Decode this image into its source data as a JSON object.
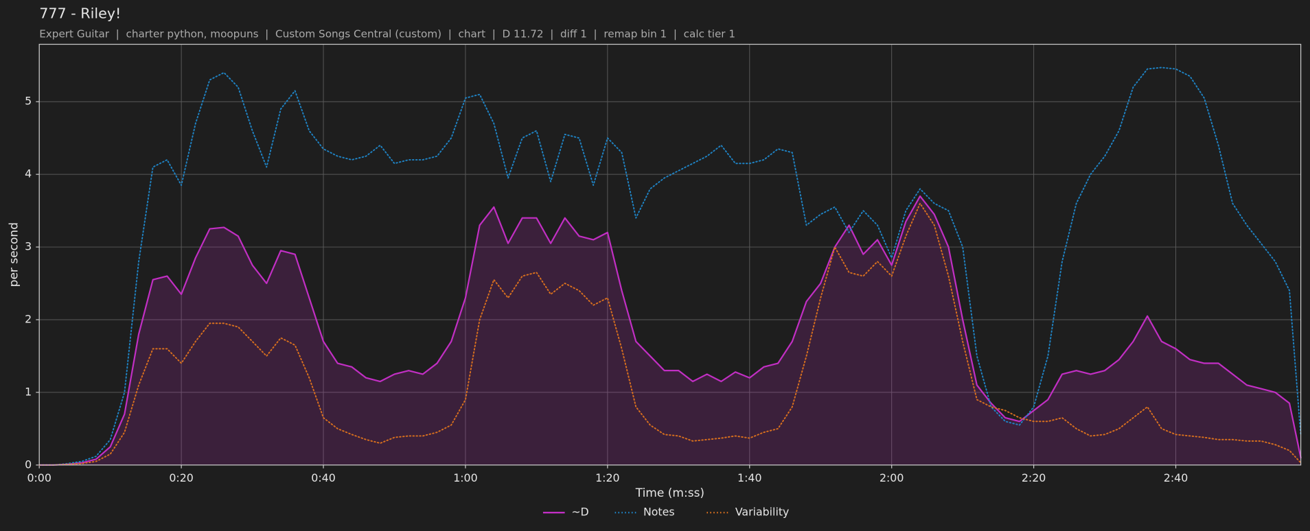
{
  "chart_data": {
    "type": "line",
    "title": "777 - Riley!",
    "subtitle": "Expert Guitar  |  charter python, moopuns  |  Custom Songs Central (custom)  |  chart  |  D 11.72  |  diff 1  |  remap bin 1  |  calc tier 1",
    "xlabel": "Time (m:ss)",
    "ylabel": "per second",
    "xlim": [
      0,
      177.6
    ],
    "ylim": [
      0,
      5.79
    ],
    "xticks": [
      {
        "value": 0,
        "label": "0:00"
      },
      {
        "value": 20,
        "label": "0:20"
      },
      {
        "value": 40,
        "label": "0:40"
      },
      {
        "value": 60,
        "label": "1:00"
      },
      {
        "value": 80,
        "label": "1:20"
      },
      {
        "value": 100,
        "label": "1:40"
      },
      {
        "value": 120,
        "label": "2:00"
      },
      {
        "value": 140,
        "label": "2:20"
      },
      {
        "value": 160,
        "label": "2:40"
      }
    ],
    "yticks": [
      0,
      1,
      2,
      3,
      4,
      5
    ],
    "grid": true,
    "legend": "bottom",
    "x": [
      0,
      2,
      4,
      6,
      8,
      10,
      12,
      14,
      16,
      18,
      20,
      22,
      24,
      26,
      28,
      30,
      32,
      34,
      36,
      38,
      40,
      42,
      44,
      46,
      48,
      50,
      52,
      54,
      56,
      58,
      60,
      62,
      64,
      66,
      68,
      70,
      72,
      74,
      76,
      78,
      80,
      82,
      84,
      86,
      88,
      90,
      92,
      94,
      96,
      98,
      100,
      102,
      104,
      106,
      108,
      110,
      112,
      114,
      116,
      118,
      120,
      122,
      124,
      126,
      128,
      130,
      132,
      134,
      136,
      138,
      140,
      142,
      144,
      146,
      148,
      150,
      152,
      154,
      156,
      158,
      160,
      162,
      164,
      166,
      168,
      170,
      172,
      174,
      176,
      177.6
    ],
    "series": [
      {
        "name": "~D",
        "color": "#c22fc4",
        "linestyle": "solid",
        "fill": true,
        "values": [
          0,
          0,
          0.01,
          0.03,
          0.08,
          0.25,
          0.7,
          1.8,
          2.55,
          2.6,
          2.35,
          2.85,
          3.25,
          3.27,
          3.15,
          2.75,
          2.5,
          2.95,
          2.9,
          2.3,
          1.7,
          1.4,
          1.35,
          1.2,
          1.15,
          1.25,
          1.3,
          1.25,
          1.4,
          1.7,
          2.3,
          3.3,
          3.55,
          3.05,
          3.4,
          3.4,
          3.05,
          3.4,
          3.15,
          3.1,
          3.2,
          2.4,
          1.7,
          1.5,
          1.3,
          1.3,
          1.15,
          1.25,
          1.15,
          1.28,
          1.2,
          1.35,
          1.4,
          1.7,
          2.25,
          2.5,
          3.0,
          3.3,
          2.9,
          3.1,
          2.75,
          3.35,
          3.7,
          3.45,
          3.0,
          2.0,
          1.1,
          0.85,
          0.65,
          0.6,
          0.75,
          0.9,
          1.25,
          1.3,
          1.25,
          1.3,
          1.45,
          1.7,
          2.05,
          1.7,
          1.6,
          1.45,
          1.4,
          1.4,
          1.25,
          1.1,
          1.05,
          1.0,
          0.85,
          0.1
        ]
      },
      {
        "name": "Notes",
        "color": "#1f83c4",
        "linestyle": "dotted",
        "fill": false,
        "values": [
          0,
          0,
          0.02,
          0.05,
          0.12,
          0.35,
          1.0,
          2.8,
          4.1,
          4.2,
          3.85,
          4.7,
          5.3,
          5.4,
          5.2,
          4.6,
          4.1,
          4.9,
          5.15,
          4.6,
          4.35,
          4.25,
          4.2,
          4.25,
          4.4,
          4.15,
          4.2,
          4.2,
          4.25,
          4.5,
          5.05,
          5.1,
          4.7,
          3.95,
          4.5,
          4.6,
          3.9,
          4.55,
          4.5,
          3.85,
          4.5,
          4.3,
          3.4,
          3.8,
          3.95,
          4.05,
          4.15,
          4.25,
          4.4,
          4.15,
          4.15,
          4.2,
          4.35,
          4.3,
          3.3,
          3.45,
          3.55,
          3.2,
          3.5,
          3.3,
          2.85,
          3.5,
          3.8,
          3.6,
          3.5,
          3.0,
          1.5,
          0.8,
          0.6,
          0.55,
          0.8,
          1.5,
          2.8,
          3.6,
          4.0,
          4.25,
          4.6,
          5.2,
          5.45,
          5.47,
          5.45,
          5.35,
          5.05,
          4.4,
          3.6,
          3.3,
          3.05,
          2.8,
          2.4,
          0.4
        ]
      },
      {
        "name": "Variability",
        "color": "#d9701e",
        "linestyle": "dotted",
        "fill": false,
        "values": [
          0,
          0,
          0.01,
          0.02,
          0.05,
          0.15,
          0.45,
          1.1,
          1.6,
          1.6,
          1.4,
          1.7,
          1.95,
          1.95,
          1.9,
          1.7,
          1.5,
          1.75,
          1.65,
          1.2,
          0.65,
          0.5,
          0.42,
          0.35,
          0.3,
          0.38,
          0.4,
          0.4,
          0.45,
          0.55,
          0.9,
          2.0,
          2.55,
          2.3,
          2.6,
          2.65,
          2.35,
          2.5,
          2.4,
          2.2,
          2.3,
          1.6,
          0.8,
          0.55,
          0.42,
          0.4,
          0.33,
          0.35,
          0.37,
          0.4,
          0.37,
          0.45,
          0.5,
          0.8,
          1.5,
          2.3,
          3.0,
          2.65,
          2.6,
          2.8,
          2.6,
          3.15,
          3.6,
          3.3,
          2.6,
          1.7,
          0.9,
          0.8,
          0.75,
          0.65,
          0.6,
          0.6,
          0.65,
          0.5,
          0.4,
          0.42,
          0.5,
          0.65,
          0.8,
          0.5,
          0.42,
          0.4,
          0.38,
          0.35,
          0.35,
          0.33,
          0.33,
          0.28,
          0.2,
          0.03
        ]
      }
    ]
  }
}
